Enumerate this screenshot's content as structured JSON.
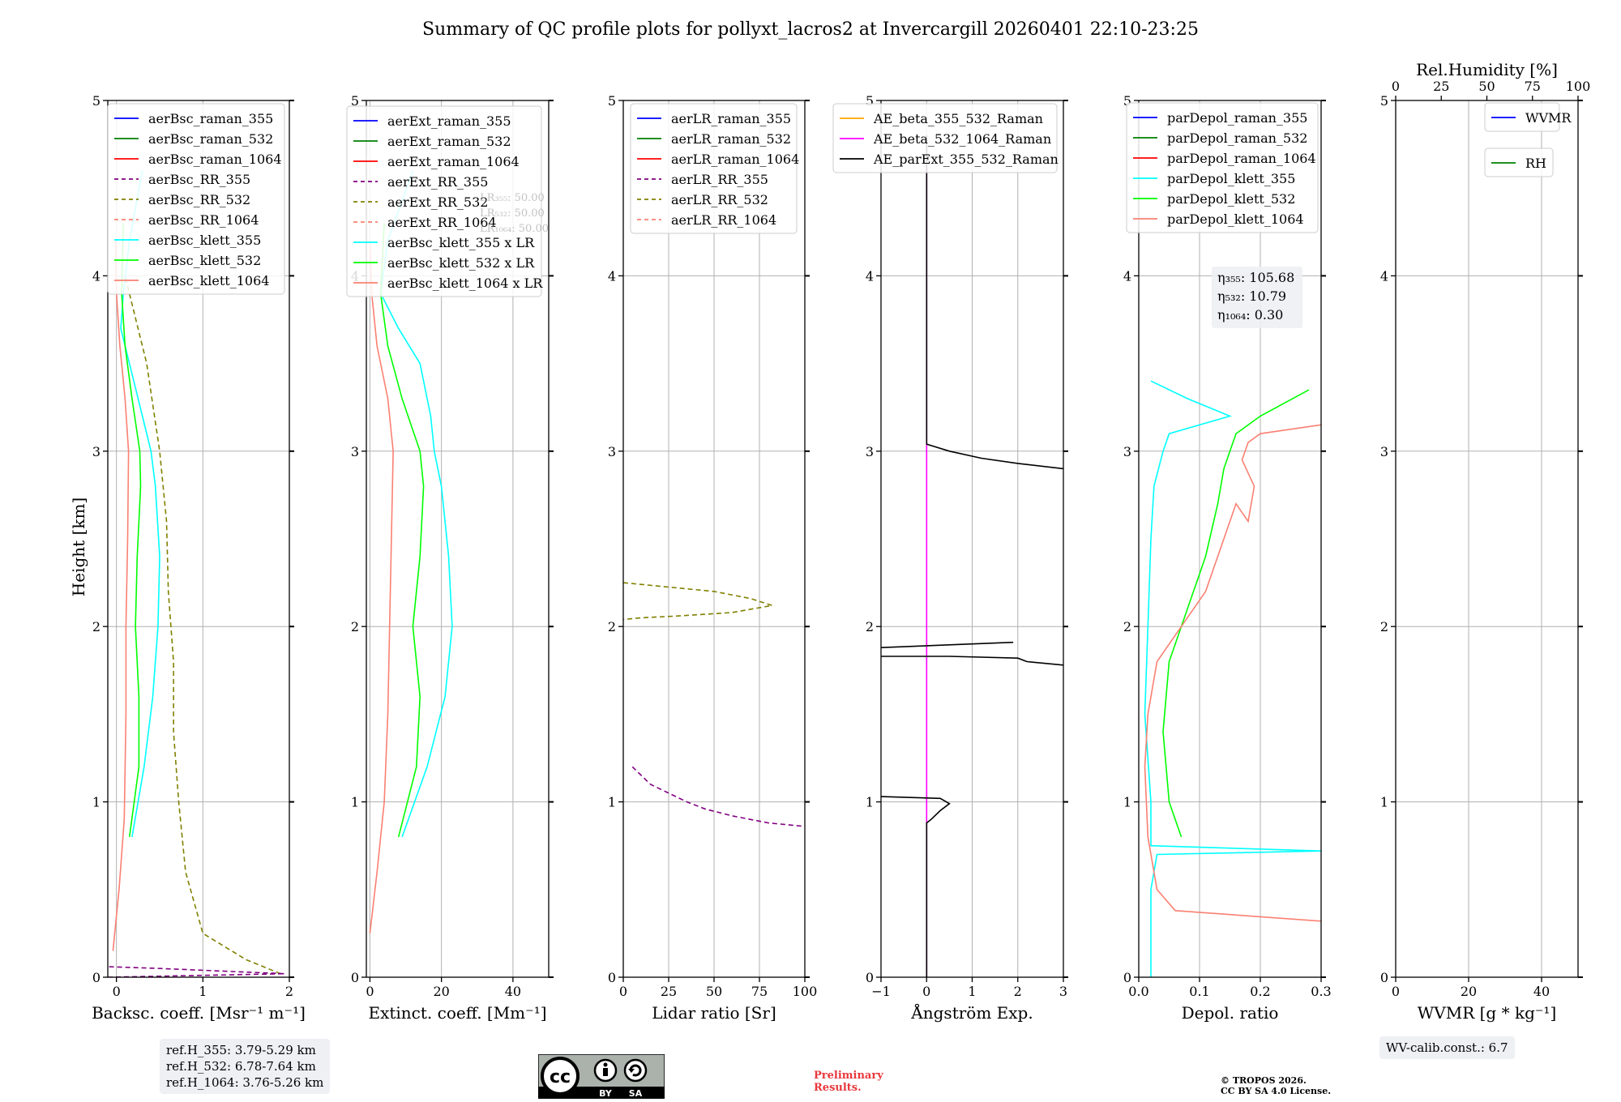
{
  "chart_data": {
    "title": "Summary of QC profile plots for pollyxt_lacros2 at Invercargill 20260401 22:10-23:25",
    "ylabel": "Height [km]",
    "ylim": [
      0,
      5
    ],
    "yticks": [
      0,
      1,
      2,
      3,
      4,
      5
    ],
    "panels": [
      {
        "id": "backscatter",
        "type": "line",
        "xlabel": "Backsc. coeff. [Msr⁻¹ m⁻¹]",
        "xlim": [
          -0.1,
          2
        ],
        "xticks": [
          0,
          1,
          2
        ],
        "legend": [
          {
            "name": "aerBsc_raman_355",
            "color": "#0000ff",
            "dash": false
          },
          {
            "name": "aerBsc_raman_532",
            "color": "#008000",
            "dash": false
          },
          {
            "name": "aerBsc_raman_1064",
            "color": "#ff0000",
            "dash": false
          },
          {
            "name": "aerBsc_RR_355",
            "color": "#800080",
            "dash": true
          },
          {
            "name": "aerBsc_RR_532",
            "color": "#808000",
            "dash": true
          },
          {
            "name": "aerBsc_RR_1064",
            "color": "#fa8072",
            "dash": true
          },
          {
            "name": "aerBsc_klett_355",
            "color": "#00ffff",
            "dash": false
          },
          {
            "name": "aerBsc_klett_532",
            "color": "#00ff00",
            "dash": false
          },
          {
            "name": "aerBsc_klett_1064",
            "color": "#fa8072",
            "dash": false
          }
        ],
        "series": [
          {
            "name": "aerBsc_klett_355",
            "color": "#00ffff",
            "x": [
              0.18,
              0.32,
              0.42,
              0.48,
              0.5,
              0.45,
              0.4,
              0.3,
              0.15,
              0.05,
              0.08,
              0.15,
              0.3
            ],
            "y": [
              0.8,
              1.2,
              1.6,
              2.0,
              2.4,
              2.8,
              3.0,
              3.2,
              3.5,
              3.7,
              3.9,
              4.2,
              4.6
            ]
          },
          {
            "name": "aerBsc_klett_532",
            "color": "#00ff00",
            "x": [
              0.15,
              0.26,
              0.26,
              0.22,
              0.24,
              0.28,
              0.27,
              0.18,
              0.1,
              0.06,
              0.08
            ],
            "y": [
              0.8,
              1.2,
              1.6,
              2.0,
              2.4,
              2.8,
              3.0,
              3.3,
              3.6,
              3.9,
              4.3
            ]
          },
          {
            "name": "aerBsc_klett_1064",
            "color": "#fa8072",
            "x": [
              -0.04,
              0.03,
              0.09,
              0.11,
              0.11,
              0.13,
              0.14,
              0.1,
              0.04,
              0.0,
              -0.01
            ],
            "y": [
              0.15,
              0.5,
              0.9,
              1.5,
              2.0,
              2.5,
              3.0,
              3.3,
              3.6,
              3.9,
              4.2
            ]
          },
          {
            "name": "aerBsc_RR_532",
            "color": "#808000",
            "dash": true,
            "x": [
              1.9,
              1.5,
              1.0,
              0.8,
              0.72,
              0.66,
              0.66,
              0.6,
              0.58,
              0.5,
              0.44,
              0.35,
              0.1
            ],
            "y": [
              0.02,
              0.1,
              0.25,
              0.6,
              1.0,
              1.4,
              1.8,
              2.2,
              2.6,
              3.0,
              3.2,
              3.5,
              4.0
            ]
          },
          {
            "name": "aerBsc_RR_355",
            "color": "#800080",
            "dash": true,
            "x": [
              -0.1,
              1.95,
              0.5,
              -0.1
            ],
            "y": [
              0.0,
              0.02,
              0.05,
              0.06
            ]
          }
        ]
      },
      {
        "id": "extinction",
        "type": "line",
        "xlabel": "Extinct. coeff. [Mm⁻¹]",
        "xlim": [
          -1,
          50
        ],
        "xticks": [
          0,
          20,
          40
        ],
        "lr_text": [
          "LR₃₅₅: 50.00",
          "LR₅₃₂: 50.00",
          "LR₁₀₆₄: 50.00"
        ],
        "legend": [
          {
            "name": "aerExt_raman_355",
            "color": "#0000ff",
            "dash": false
          },
          {
            "name": "aerExt_raman_532",
            "color": "#008000",
            "dash": false
          },
          {
            "name": "aerExt_raman_1064",
            "color": "#ff0000",
            "dash": false
          },
          {
            "name": "aerExt_RR_355",
            "color": "#800080",
            "dash": true
          },
          {
            "name": "aerExt_RR_532",
            "color": "#808000",
            "dash": true
          },
          {
            "name": "aerExt_RR_1064",
            "color": "#fa8072",
            "dash": true
          },
          {
            "name": "aerBsc_klett_355 x LR",
            "color": "#00ffff",
            "dash": false
          },
          {
            "name": "aerBsc_klett_532 x LR",
            "color": "#00ff00",
            "dash": false
          },
          {
            "name": "aerBsc_klett_1064 x LR",
            "color": "#fa8072",
            "dash": false
          }
        ],
        "series": [
          {
            "name": "aerBsc_klett_355 x LR",
            "color": "#00ffff",
            "x": [
              9,
              16,
              21,
              23,
              22,
              20,
              18,
              17,
              14,
              8,
              3,
              5,
              12
            ],
            "y": [
              0.8,
              1.2,
              1.6,
              2.0,
              2.4,
              2.8,
              3.0,
              3.2,
              3.5,
              3.7,
              3.9,
              4.2,
              4.6
            ]
          },
          {
            "name": "aerBsc_klett_532 x LR",
            "color": "#00ff00",
            "x": [
              8,
              13,
              14,
              12,
              14,
              15,
              14,
              9,
              5,
              3,
              4
            ],
            "y": [
              0.8,
              1.2,
              1.6,
              2.0,
              2.4,
              2.8,
              3.0,
              3.3,
              3.6,
              3.9,
              4.3
            ]
          },
          {
            "name": "aerBsc_klett_1064 x LR",
            "color": "#fa8072",
            "x": [
              0,
              2,
              4,
              5,
              5.5,
              6,
              6.5,
              5,
              2,
              0.5,
              0
            ],
            "y": [
              0.25,
              0.6,
              1.0,
              1.5,
              2.0,
              2.5,
              3.0,
              3.3,
              3.6,
              3.9,
              4.2
            ]
          }
        ]
      },
      {
        "id": "lidar_ratio",
        "type": "line",
        "xlabel": "Lidar ratio [Sr]",
        "xlim": [
          0,
          100
        ],
        "xticks": [
          0,
          25,
          50,
          75,
          100
        ],
        "legend": [
          {
            "name": "aerLR_raman_355",
            "color": "#0000ff",
            "dash": false
          },
          {
            "name": "aerLR_raman_532",
            "color": "#008000",
            "dash": false
          },
          {
            "name": "aerLR_raman_1064",
            "color": "#ff0000",
            "dash": false
          },
          {
            "name": "aerLR_RR_355",
            "color": "#800080",
            "dash": true
          },
          {
            "name": "aerLR_RR_532",
            "color": "#808000",
            "dash": true
          },
          {
            "name": "aerLR_RR_1064",
            "color": "#fa8072",
            "dash": true
          }
        ],
        "series": [
          {
            "name": "aerLR_RR_355",
            "color": "#800080",
            "dash": true,
            "x": [
              5,
              15,
              25,
              35,
              45,
              60,
              80,
              100
            ],
            "y": [
              1.2,
              1.1,
              1.05,
              1.0,
              0.96,
              0.92,
              0.88,
              0.86
            ]
          },
          {
            "name": "aerLR_RR_532",
            "color": "#808000",
            "dash": true,
            "x": [
              0,
              30,
              50,
              70,
              82,
              60,
              30,
              10,
              0
            ],
            "y": [
              2.25,
              2.22,
              2.2,
              2.16,
              2.12,
              2.08,
              2.06,
              2.05,
              2.04
            ]
          }
        ]
      },
      {
        "id": "angstrom",
        "type": "line",
        "xlabel": "Ångström Exp.",
        "xlim": [
          -1,
          3
        ],
        "xticks": [
          -1,
          0,
          1,
          2,
          3
        ],
        "legend": [
          {
            "name": "AE_beta_355_532_Raman",
            "color": "#ffa500",
            "dash": false
          },
          {
            "name": "AE_beta_532_1064_Raman",
            "color": "#ff00ff",
            "dash": false
          },
          {
            "name": "AE_parExt_355_532_Raman",
            "color": "#000000",
            "dash": false
          }
        ],
        "series": [
          {
            "name": "AE_beta_532_1064_Raman",
            "color": "#ff00ff",
            "x": [
              0,
              0
            ],
            "y": [
              0,
              4.8
            ]
          },
          {
            "name": "AE_parExt_355_532_Raman",
            "color": "#000000",
            "x": [
              0,
              0,
              0.1,
              0.3,
              0.5,
              0.3,
              -1
            ],
            "y": [
              0,
              0.88,
              0.9,
              0.95,
              0.99,
              1.02,
              1.03
            ]
          },
          {
            "name": "AE_parExt_355_532_Raman",
            "color": "#000000",
            "x": [
              -1,
              1.9
            ],
            "y": [
              1.88,
              1.91
            ]
          },
          {
            "name": "AE_parExt_355_532_Raman",
            "color": "#000000",
            "x": [
              -1,
              0.5,
              2.0,
              2.2,
              3.0
            ],
            "y": [
              1.83,
              1.83,
              1.82,
              1.8,
              1.78
            ]
          },
          {
            "name": "AE_parExt_355_532_Raman",
            "color": "#000000",
            "x": [
              0,
              0,
              0.5,
              1.2,
              2.0,
              3.0
            ],
            "y": [
              4.8,
              3.04,
              3.0,
              2.96,
              2.93,
              2.9
            ]
          }
        ]
      },
      {
        "id": "depolarization",
        "type": "line",
        "xlabel": "Depol. ratio",
        "xlim": [
          0,
          0.3
        ],
        "xticks": [
          0.0,
          0.1,
          0.2,
          0.3
        ],
        "eta_text": [
          "η₃₅₅: 105.68",
          "η₅₃₂: 10.79",
          "η₁₀₆₄: 0.30"
        ],
        "legend": [
          {
            "name": "parDepol_raman_355",
            "color": "#0000ff",
            "dash": false
          },
          {
            "name": "parDepol_raman_532",
            "color": "#008000",
            "dash": false
          },
          {
            "name": "parDepol_raman_1064",
            "color": "#ff0000",
            "dash": false
          },
          {
            "name": "parDepol_klett_355",
            "color": "#00ffff",
            "dash": false
          },
          {
            "name": "parDepol_klett_532",
            "color": "#00ff00",
            "dash": false
          },
          {
            "name": "parDepol_klett_1064",
            "color": "#fa8072",
            "dash": false
          }
        ],
        "series": [
          {
            "name": "parDepol_klett_355",
            "color": "#00ffff",
            "x": [
              0.02,
              0.02,
              0.03,
              0.3,
              0.02,
              0.02,
              0.01,
              0.015,
              0.02,
              0.025,
              0.04,
              0.05,
              0.15,
              0.08,
              0.02
            ],
            "y": [
              0,
              0.5,
              0.7,
              0.72,
              0.75,
              1.0,
              1.5,
              2.0,
              2.5,
              2.8,
              3.0,
              3.1,
              3.2,
              3.3,
              3.4
            ]
          },
          {
            "name": "parDepol_klett_532",
            "color": "#00ff00",
            "x": [
              0.07,
              0.05,
              0.04,
              0.05,
              0.08,
              0.11,
              0.13,
              0.14,
              0.15,
              0.16,
              0.2,
              0.28
            ],
            "y": [
              0.8,
              1.0,
              1.4,
              1.8,
              2.1,
              2.4,
              2.7,
              2.9,
              3.0,
              3.1,
              3.2,
              3.35
            ]
          },
          {
            "name": "parDepol_klett_1064",
            "color": "#fa8072",
            "x": [
              0.3,
              0.06,
              0.03,
              0.015,
              0.01,
              0.015,
              0.03,
              0.07,
              0.11,
              0.13,
              0.15,
              0.16,
              0.18,
              0.19,
              0.17,
              0.18,
              0.2,
              0.3
            ],
            "y": [
              0.32,
              0.38,
              0.5,
              0.8,
              1.2,
              1.5,
              1.8,
              2.0,
              2.2,
              2.4,
              2.6,
              2.7,
              2.6,
              2.8,
              2.95,
              3.05,
              3.1,
              3.15
            ]
          }
        ]
      },
      {
        "id": "wvmr",
        "type": "line",
        "xlabel": "WVMR [g * kg⁻¹]",
        "xlim": [
          0,
          50
        ],
        "xticks": [
          0,
          20,
          40
        ],
        "top_xlabel": "Rel.Humidity [%]",
        "top_xlim": [
          0,
          100
        ],
        "top_xticks": [
          0,
          25,
          50,
          75,
          100
        ],
        "legend": [
          {
            "name": "WVMR",
            "color": "#0000ff",
            "dash": false
          }
        ],
        "legend2": [
          {
            "name": "RH",
            "color": "#008000",
            "dash": false
          }
        ],
        "series": []
      }
    ]
  },
  "info": {
    "ref_h": [
      "ref.H_355: 3.79-5.29 km",
      "ref.H_532: 6.78-7.64 km",
      "ref.H_1064: 3.76-5.26 km"
    ],
    "wv_calib": "WV-calib.const.: 6.7",
    "preliminary": [
      "Preliminary",
      "Results."
    ],
    "copyright": [
      "© TROPOS 2026.",
      "CC BY SA 4.0 License."
    ],
    "license_badge": {
      "cc": "cc",
      "by": "BY",
      "sa": "SA"
    }
  }
}
